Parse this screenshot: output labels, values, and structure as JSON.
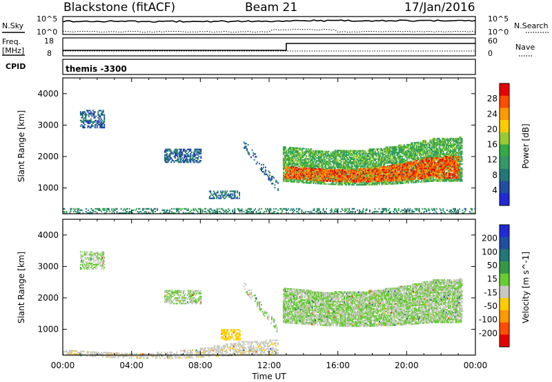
{
  "header": {
    "station": "Blackstone (fitACF)",
    "beam": "Beam 21",
    "date": "17/Jan/2016"
  },
  "noise_panel": {
    "left_label": "N.Sky",
    "right_label": "N.Search",
    "left_ticks": [
      "10^5",
      "10^0"
    ],
    "right_ticks": [
      "10^5",
      "10^0"
    ]
  },
  "freq_panel": {
    "left_label_top": "Freq.",
    "left_label_unit": "[MHz]",
    "left_ticks": [
      "18",
      "8"
    ],
    "right_label": "Nave",
    "right_ticks": [
      "60",
      "0"
    ],
    "freq_step_hour": 13.0
  },
  "cpid_panel": {
    "label": "CPID",
    "value": "themis -3300"
  },
  "power_panel": {
    "ylabel": "Slant Range [km]",
    "cbar_label": "Power [dB]",
    "cbar_ticks": [
      "28",
      "24",
      "20",
      "16",
      "12",
      "8",
      "4"
    ],
    "cbar_colors": [
      "#e60000",
      "#ff4d00",
      "#ff9900",
      "#ffcc00",
      "#99cc33",
      "#33aa44",
      "#339966",
      "#227777",
      "#1f4fa0",
      "#1f2ad6"
    ]
  },
  "velocity_panel": {
    "ylabel": "Slant Range [km]",
    "cbar_label": "Velocity [m s^-1]",
    "cbar_ticks": [
      "200",
      "100",
      "50",
      "15",
      "-15",
      "-50",
      "-100",
      "-200"
    ],
    "cbar_colors": [
      "#1f2ad6",
      "#1f4fa0",
      "#227777",
      "#339944",
      "#66cc33",
      "#c8c8c0",
      "#ffcc00",
      "#ff9900",
      "#ff4d00",
      "#e60000"
    ]
  },
  "x_axis": {
    "label": "Time UT",
    "ticks": [
      "00:00",
      "04:00",
      "08:00",
      "12:00",
      "16:00",
      "20:00",
      "00:00"
    ]
  },
  "y_axis": {
    "ticks": [
      "4000",
      "3000",
      "2000",
      "1000"
    ]
  },
  "chart_data": [
    {
      "type": "heatmap",
      "title": "Power [dB]",
      "xlabel": "Time UT",
      "ylabel": "Slant Range [km]",
      "xlim": [
        0,
        24
      ],
      "ylim": [
        180,
        4500
      ],
      "crange": [
        0,
        31
      ],
      "regions": [
        {
          "t0": 1.0,
          "t1": 2.4,
          "r0": 2900,
          "r1": 3450,
          "power": 6,
          "density": 0.5
        },
        {
          "t0": 5.9,
          "t1": 8.0,
          "r0": 1800,
          "r1": 2250,
          "power": 6,
          "density": 0.6
        },
        {
          "t0": 8.5,
          "t1": 10.3,
          "r0": 650,
          "r1": 900,
          "power": 7,
          "density": 0.5
        },
        {
          "t0": 10.5,
          "t1": 12.5,
          "r0": 1000,
          "r1": 2400,
          "power": 6,
          "density": 0.3
        },
        {
          "t0": 12.8,
          "t1": 23.2,
          "r0": 1200,
          "r1": 2300,
          "power": 14,
          "density": 0.8
        },
        {
          "t0": 12.9,
          "t1": 23.0,
          "r0": 1300,
          "r1": 1700,
          "power": 26,
          "density": 0.7
        },
        {
          "t0": 0.0,
          "t1": 24.0,
          "r0": 180,
          "r1": 350,
          "power": 10,
          "density": 0.35
        }
      ]
    },
    {
      "type": "heatmap",
      "title": "Velocity [m s^-1]",
      "xlabel": "Time UT",
      "ylabel": "Slant Range [km]",
      "xlim": [
        0,
        24
      ],
      "ylim": [
        180,
        4500
      ],
      "crange": [
        -240,
        240
      ],
      "regions": [
        {
          "t0": 1.0,
          "t1": 2.4,
          "r0": 2900,
          "r1": 3450,
          "velocity": 0,
          "density": 0.5
        },
        {
          "t0": 5.9,
          "t1": 8.0,
          "r0": 1800,
          "r1": 2250,
          "velocity": 0,
          "density": 0.6
        },
        {
          "t0": 9.2,
          "t1": 10.3,
          "r0": 650,
          "r1": 1000,
          "velocity": -60,
          "density": 0.5
        },
        {
          "t0": 10.5,
          "t1": 12.5,
          "r0": 1000,
          "r1": 2400,
          "velocity": 0,
          "density": 0.3
        },
        {
          "t0": 12.8,
          "t1": 23.2,
          "r0": 1200,
          "r1": 2300,
          "velocity": 0,
          "density": 0.85
        },
        {
          "t0": 0.0,
          "t1": 12.5,
          "r0": 180,
          "r1": 350,
          "velocity": -40,
          "density": 0.5
        }
      ]
    }
  ]
}
